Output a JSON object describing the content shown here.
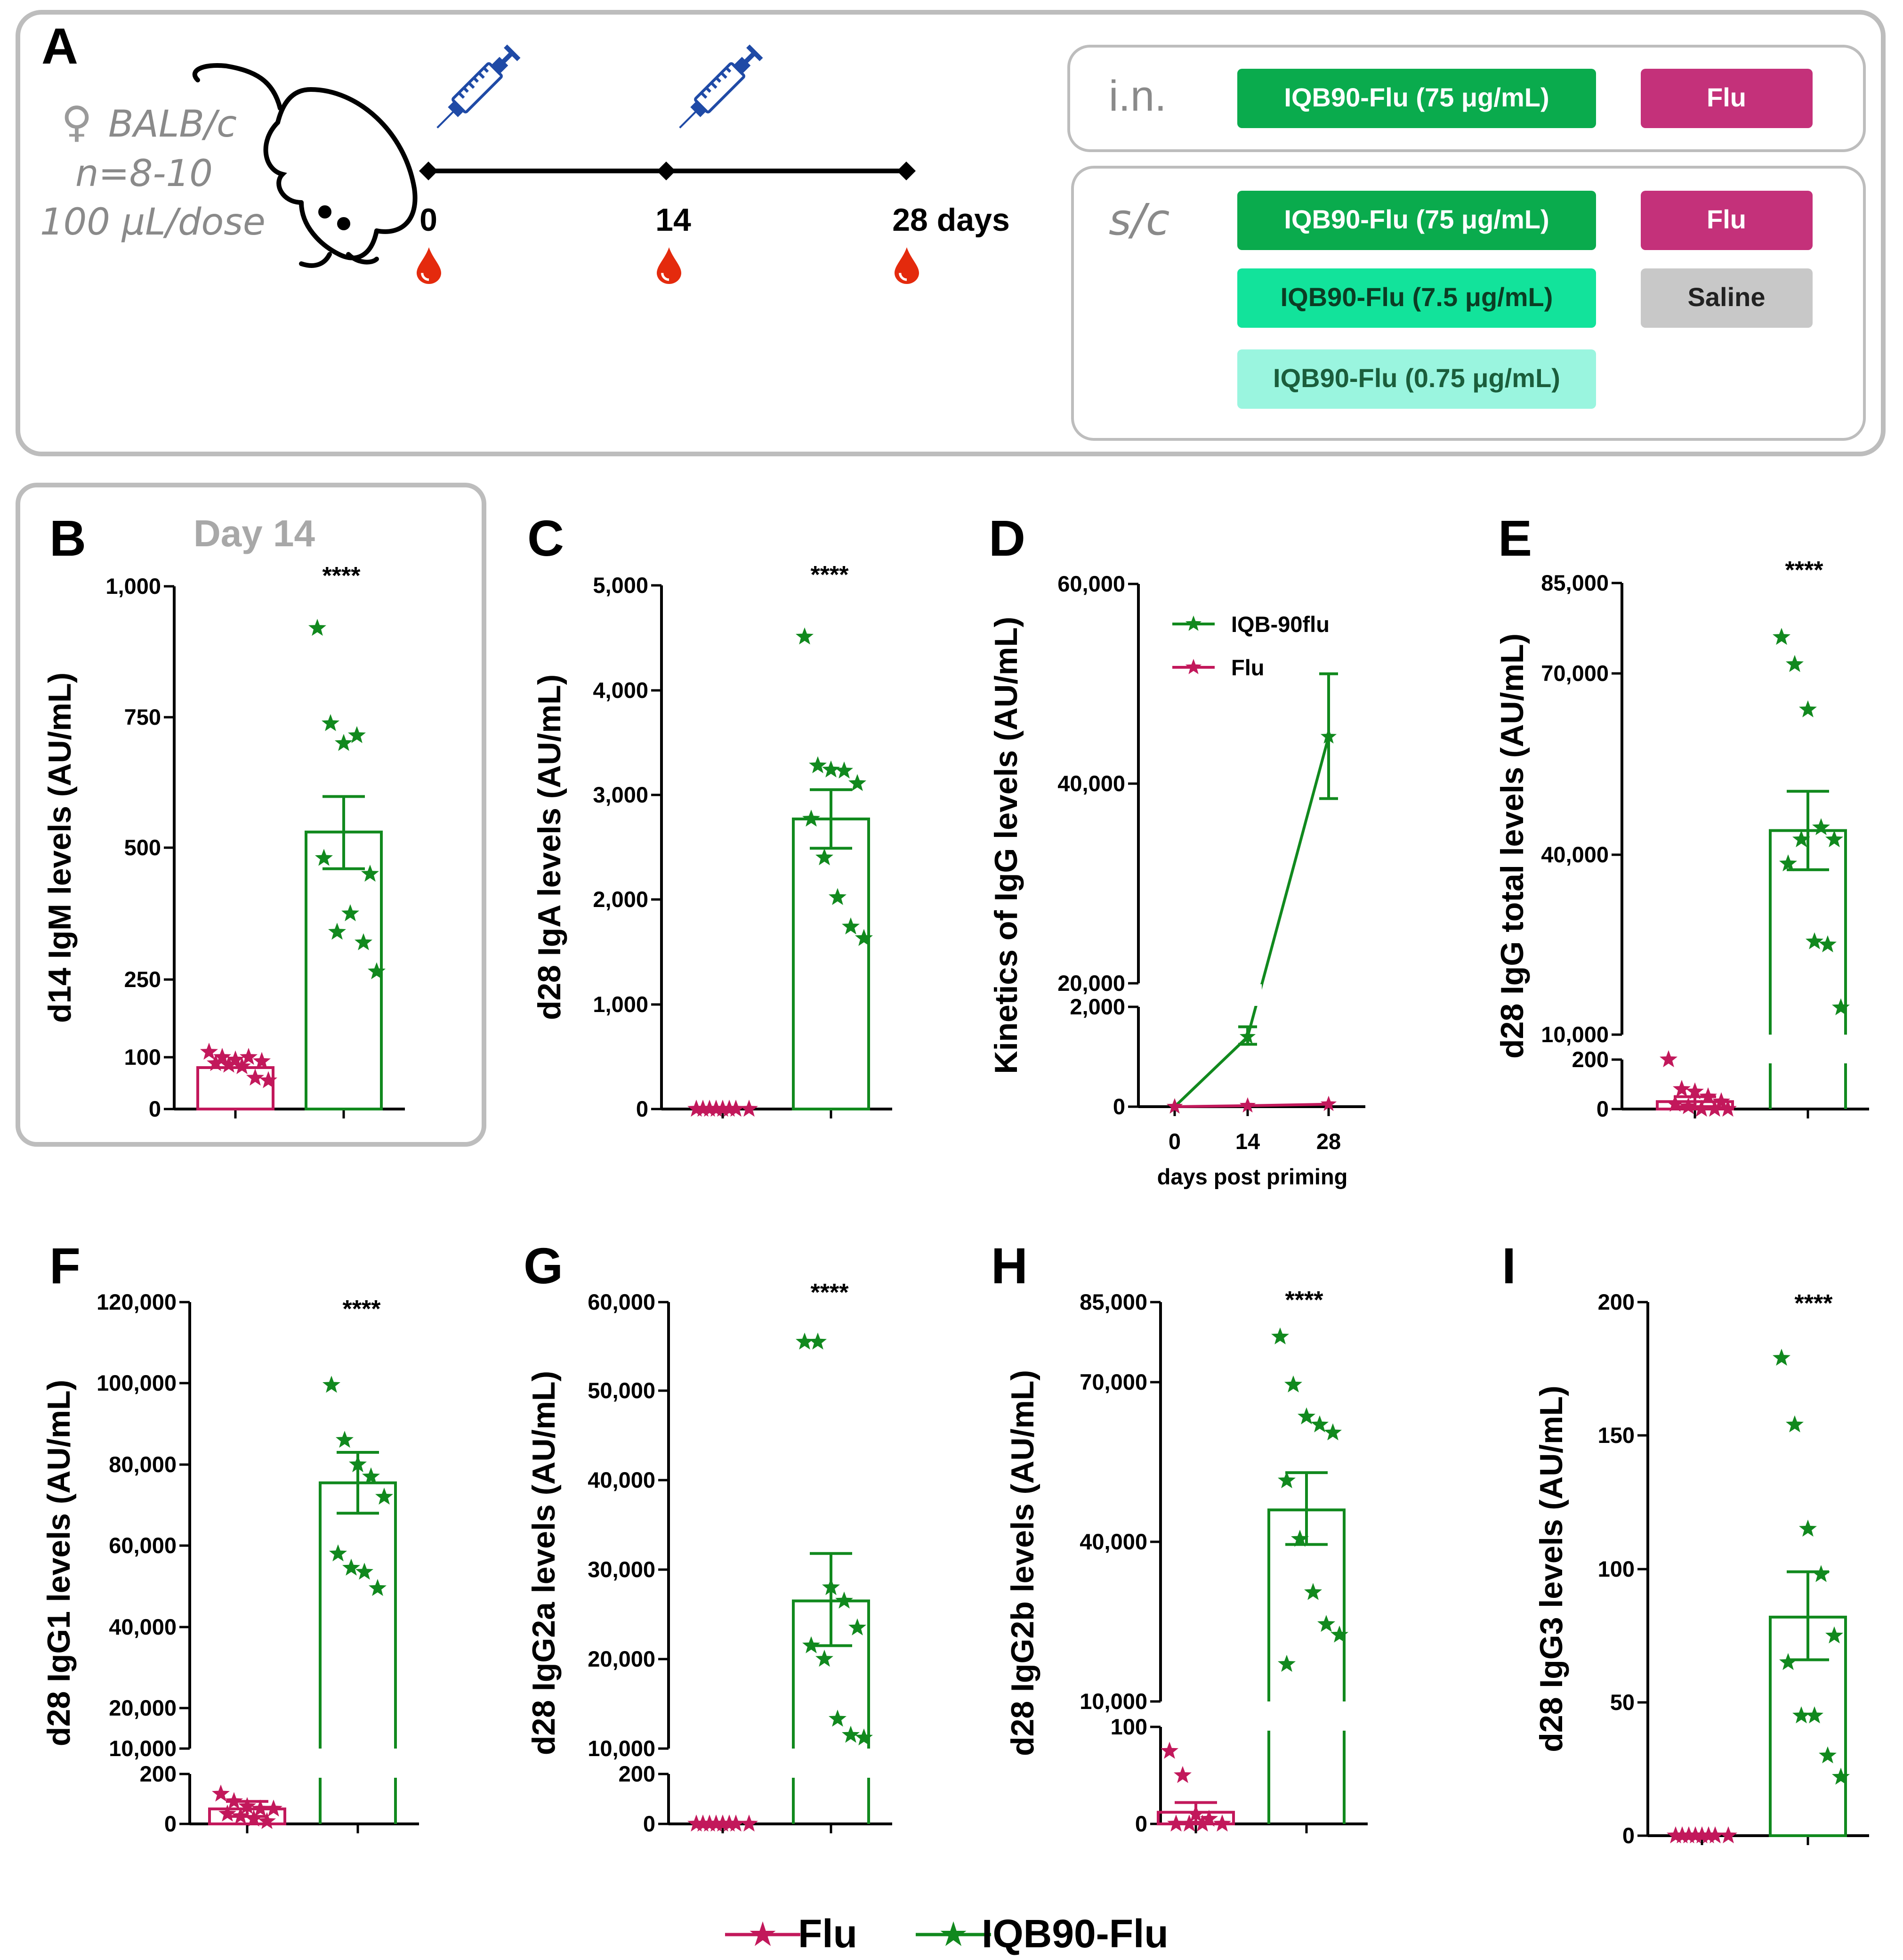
{
  "figure": {
    "panel_A": {
      "label": "A",
      "mouse": {
        "sex_symbol": "♀",
        "strain": "BALB/c",
        "n": "n=8-10",
        "dose": "100 μL/dose"
      },
      "timeline": {
        "points": [
          "0",
          "14",
          "28 days"
        ]
      },
      "routes": [
        {
          "name": "i.n.",
          "groups": [
            {
              "label": "IQB90-Flu (75 μg/mL)",
              "color": "#0aab4d"
            },
            {
              "label": "Flu",
              "color": "#c4317a"
            }
          ]
        },
        {
          "name": "s/c",
          "groups": [
            {
              "label": "IQB90-Flu (75 μg/mL)",
              "color": "#0aab4d"
            },
            {
              "label": "Flu",
              "color": "#c4317a"
            },
            {
              "label": "IQB90-Flu (7.5 μg/mL)",
              "color": "#12e39b"
            },
            {
              "label": "Saline",
              "color": "#c8c8c8"
            },
            {
              "label": "IQB90-Flu (0.75 μg/mL)",
              "color": "#9af5df"
            }
          ]
        }
      ]
    },
    "colors": {
      "flu": "#c2185b",
      "iqb": "#11891e",
      "flu_bar": "#c2185b",
      "iqb_bar": "#11891e",
      "grey": "#8f8f8f"
    },
    "legend": {
      "flu": "Flu",
      "iqb": "IQB90-Flu"
    }
  },
  "chart_data": [
    {
      "panel": "B",
      "type": "bar",
      "highlight_title": "Day 14",
      "ylabel": "d14 IgM levels (AU/mL)",
      "significance": "****",
      "categories": [
        "Flu",
        "IQB90-Flu"
      ],
      "ylim": [
        0,
        1000
      ],
      "yticks": [
        0,
        100,
        250,
        500,
        750,
        1000
      ],
      "ytick_labels": [
        "0",
        "100",
        "250",
        "500",
        "750",
        "1,000"
      ],
      "bars": [
        {
          "mean": 80
        },
        {
          "mean": 530,
          "sem": [
            460,
            598
          ]
        }
      ],
      "points": [
        [
          110,
          100,
          95,
          100,
          92,
          88,
          85,
          82,
          60,
          55
        ],
        [
          920,
          738,
          700,
          715,
          450,
          480,
          340,
          375,
          320,
          265
        ]
      ]
    },
    {
      "panel": "C",
      "type": "bar",
      "ylabel": "d28 IgA levels (AU/mL)",
      "significance": "****",
      "categories": [
        "Flu",
        "IQB90-Flu"
      ],
      "ylim": [
        0,
        5000
      ],
      "yticks": [
        0,
        1000,
        2000,
        3000,
        4000,
        5000
      ],
      "ytick_labels": [
        "0",
        "1,000",
        "2,000",
        "3,000",
        "4,000",
        "5,000"
      ],
      "bars": [
        {
          "mean": 0
        },
        {
          "mean": 2770,
          "sem": [
            2490,
            3050
          ]
        }
      ],
      "points": [
        [
          0,
          0,
          0,
          0,
          0,
          0,
          0,
          0
        ],
        [
          4510,
          3280,
          3240,
          3230,
          3110,
          2770,
          2400,
          2020,
          1740,
          1630
        ]
      ]
    },
    {
      "panel": "D",
      "type": "line",
      "ylabel": "Kinetics of IgG levels (AU/mL)",
      "xlabel": "days post priming",
      "x": [
        0,
        14,
        28
      ],
      "xtick_labels": [
        "0",
        "14",
        "28"
      ],
      "yticks": [
        0,
        2000,
        20000,
        40000,
        60000
      ],
      "ytick_labels": [
        "0",
        "2,000",
        "20,000",
        "40,000",
        "60,000"
      ],
      "axis_break": {
        "lower": [
          0,
          2000
        ],
        "upper": [
          20000,
          60000
        ]
      },
      "legend_position": "top-left",
      "series": [
        {
          "name": "IQB-90flu",
          "values": [
            0,
            1400,
            44700
          ],
          "sem_lo": [
            0,
            1250,
            38500
          ],
          "sem_hi": [
            0,
            1600,
            51000
          ]
        },
        {
          "name": "Flu",
          "values": [
            0,
            20,
            50
          ]
        }
      ]
    },
    {
      "panel": "E",
      "type": "bar",
      "ylabel": "d28 IgG total levels (AU/mL)",
      "significance": "****",
      "categories": [
        "Flu",
        "IQB90-Flu"
      ],
      "yticks": [
        0,
        200,
        10000,
        40000,
        70000,
        85000
      ],
      "ytick_labels": [
        "0",
        "200",
        "10,000",
        "40,000",
        "70,000",
        "85,000"
      ],
      "axis_break": {
        "lower": [
          0,
          200
        ],
        "upper": [
          10000,
          85000
        ]
      },
      "bars": [
        {
          "mean": 30,
          "sem": [
            10,
            50
          ]
        },
        {
          "mean": 44000,
          "sem": [
            37500,
            50500
          ]
        }
      ],
      "points": [
        [
          200,
          80,
          70,
          50,
          30,
          20,
          10,
          0,
          0,
          0
        ],
        [
          76000,
          71500,
          64000,
          44500,
          42500,
          38500,
          42500,
          25500,
          25000,
          14500
        ]
      ]
    },
    {
      "panel": "F",
      "type": "bar",
      "ylabel": "d28 IgG1 levels (AU/mL)",
      "significance": "****",
      "categories": [
        "Flu",
        "IQB90-Flu"
      ],
      "yticks": [
        0,
        200,
        10000,
        20000,
        40000,
        60000,
        80000,
        100000,
        120000
      ],
      "ytick_labels": [
        "0",
        "200",
        "10,000",
        "20,000",
        "40,000",
        "60,000",
        "80,000",
        "100,000",
        "120,000"
      ],
      "axis_break": {
        "lower": [
          0,
          200
        ],
        "upper": [
          10000,
          120000
        ]
      },
      "bars": [
        {
          "mean": 60,
          "sem": [
            30,
            90
          ]
        },
        {
          "mean": 75500,
          "sem": [
            68000,
            83000
          ]
        }
      ],
      "points": [
        [
          120,
          90,
          70,
          60,
          60,
          40,
          30,
          20,
          10
        ],
        [
          99500,
          86000,
          80000,
          77000,
          72000,
          58000,
          54500,
          53500,
          49500
        ]
      ]
    },
    {
      "panel": "G",
      "type": "bar",
      "ylabel": "d28 IgG2a levels (AU/mL)",
      "significance": "****",
      "categories": [
        "Flu",
        "IQB90-Flu"
      ],
      "yticks": [
        0,
        200,
        10000,
        20000,
        30000,
        40000,
        50000,
        60000
      ],
      "ytick_labels": [
        "0",
        "200",
        "10,000",
        "20,000",
        "30,000",
        "40,000",
        "50,000",
        "60,000"
      ],
      "axis_break": {
        "lower": [
          0,
          200
        ],
        "upper": [
          10000,
          60000
        ]
      },
      "bars": [
        {
          "mean": 0
        },
        {
          "mean": 26500,
          "sem": [
            21500,
            31800
          ]
        }
      ],
      "points": [
        [
          0,
          0,
          0,
          0,
          0,
          0,
          0,
          0
        ],
        [
          55500,
          55500,
          28000,
          26500,
          23500,
          21500,
          20000,
          13300,
          11500,
          11200
        ]
      ]
    },
    {
      "panel": "H",
      "type": "bar",
      "ylabel": "d28 IgG2b levels (AU/mL)",
      "significance": "****",
      "categories": [
        "Flu",
        "IQB90-Flu"
      ],
      "yticks": [
        0,
        100,
        10000,
        40000,
        70000,
        85000
      ],
      "ytick_labels": [
        "0",
        "100",
        "10,000",
        "40,000",
        "70,000",
        "85,000"
      ],
      "axis_break": {
        "lower": [
          0,
          100
        ],
        "upper": [
          10000,
          85000
        ]
      },
      "bars": [
        {
          "mean": 12,
          "sem": [
            0,
            22
          ]
        },
        {
          "mean": 46000,
          "sem": [
            39500,
            53000
          ]
        }
      ],
      "points": [
        [
          75,
          50,
          10,
          5,
          0,
          0,
          0,
          0
        ],
        [
          78500,
          69500,
          63500,
          62000,
          60500,
          51500,
          40500,
          30500,
          24500,
          22500,
          17000
        ]
      ]
    },
    {
      "panel": "I",
      "type": "bar",
      "ylabel": "d28 IgG3 levels (AU/mL)",
      "significance": "****",
      "categories": [
        "Flu",
        "IQB90-Flu"
      ],
      "ylim": [
        0,
        200
      ],
      "yticks": [
        0,
        50,
        100,
        150,
        200
      ],
      "ytick_labels": [
        "0",
        "50",
        "100",
        "150",
        "200"
      ],
      "bars": [
        {
          "mean": 0
        },
        {
          "mean": 82,
          "sem": [
            66,
            99
          ]
        }
      ],
      "points": [
        [
          0,
          0,
          0,
          0,
          0,
          0,
          0,
          0
        ],
        [
          179,
          154,
          115,
          98,
          75,
          65,
          45,
          45,
          30,
          22
        ]
      ]
    }
  ]
}
